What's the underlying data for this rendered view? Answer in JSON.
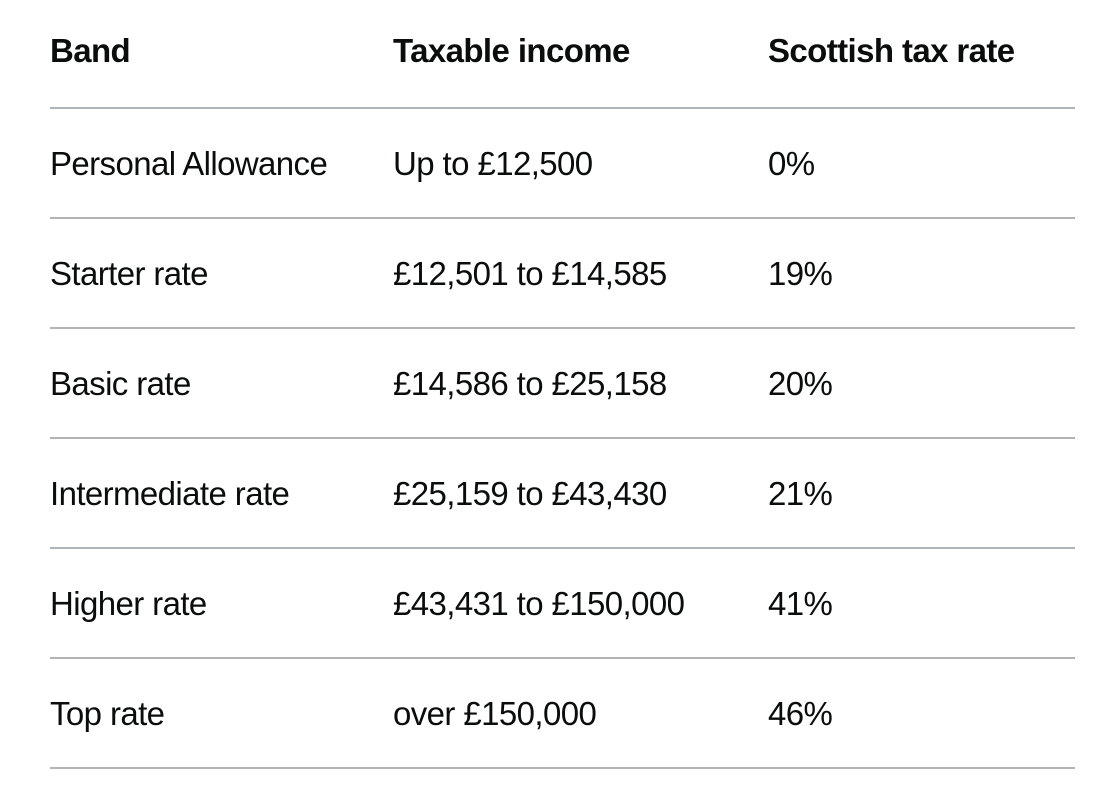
{
  "table": {
    "headers": [
      "Band",
      "Taxable income",
      "Scottish tax rate"
    ],
    "rows": [
      [
        "Personal Allowance",
        "Up to £12,500",
        "0%"
      ],
      [
        "Starter rate",
        "£12,501 to £14,585",
        "19%"
      ],
      [
        "Basic rate",
        "£14,586 to £25,158",
        "20%"
      ],
      [
        "Intermediate rate",
        "£25,159 to £43,430",
        "21%"
      ],
      [
        "Higher rate",
        "£43,431 to £150,000",
        "41%"
      ],
      [
        "Top rate",
        "over £150,000",
        "46%"
      ]
    ]
  }
}
